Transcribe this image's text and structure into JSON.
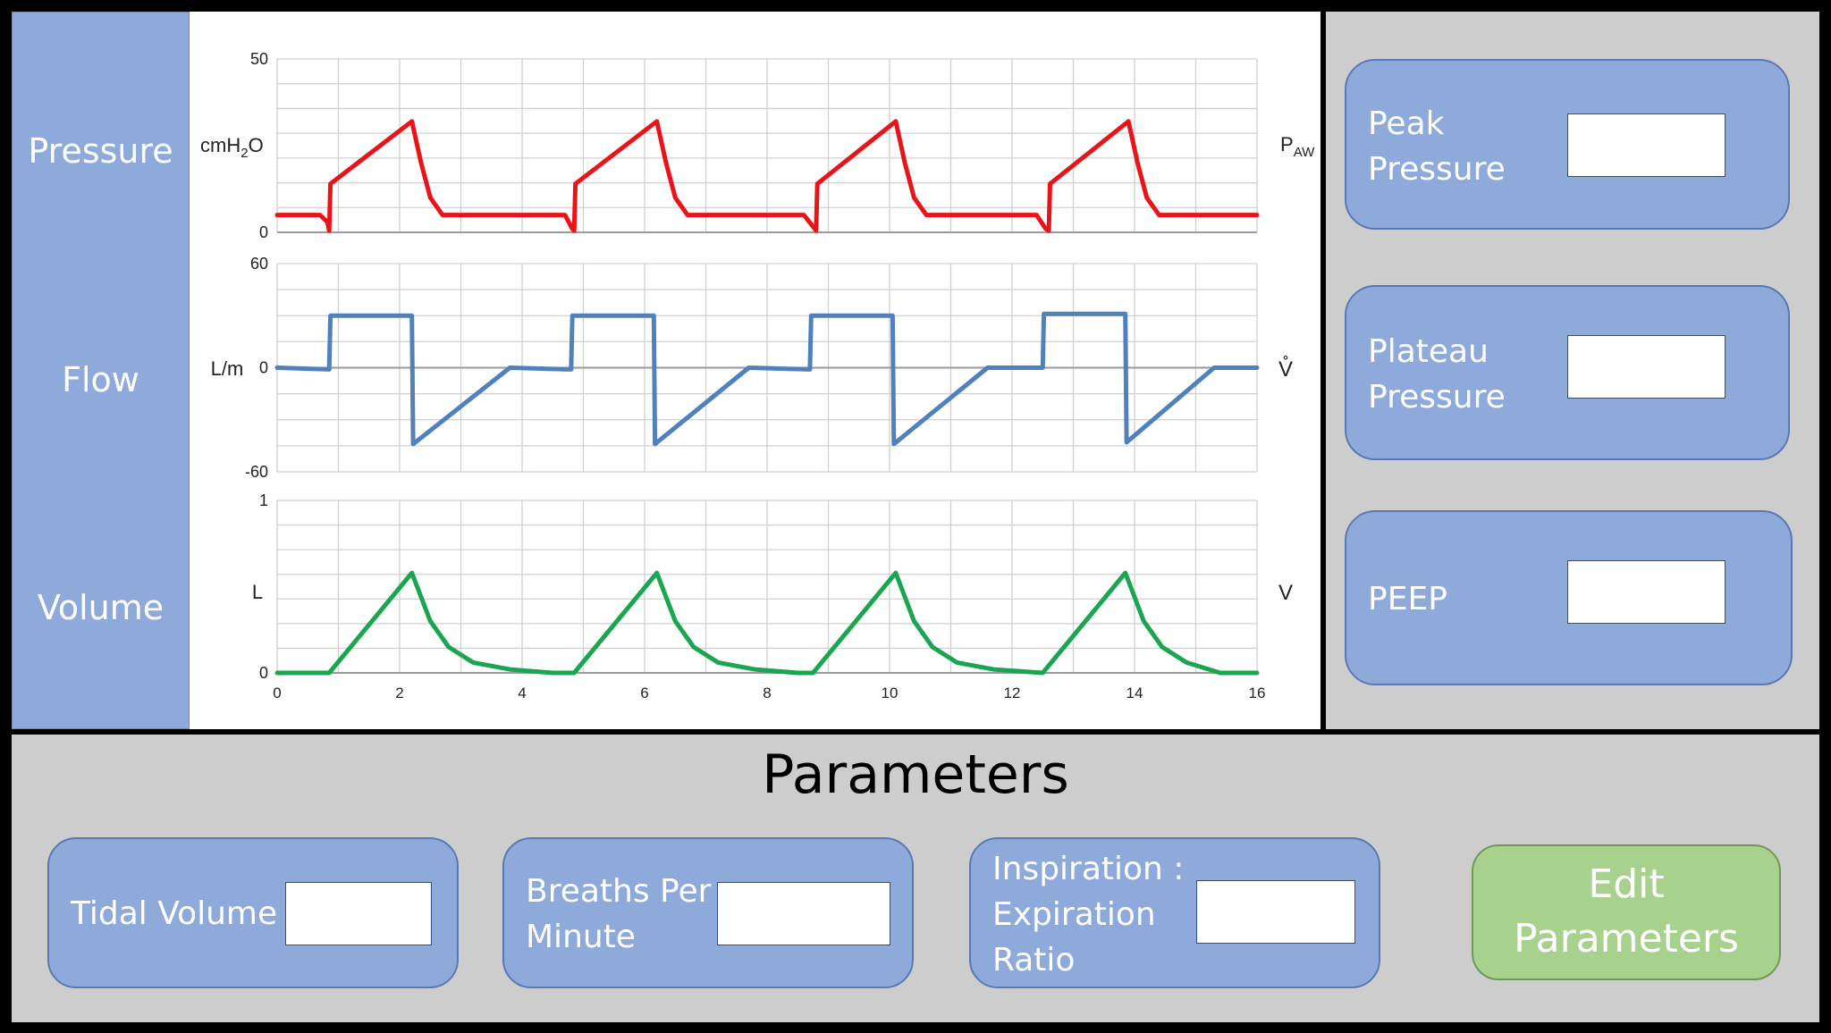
{
  "side_labels": {
    "pressure": "Pressure",
    "flow": "Flow",
    "volume": "Volume"
  },
  "colors": {
    "panel_blue": "#8eaadb",
    "pressure_trace": "#e8141a",
    "flow_trace": "#4f81bd",
    "volume_trace": "#1aa650",
    "edit_button": "#a9d18e",
    "panel_gray": "#cdcdcd"
  },
  "chart_data": [
    {
      "type": "line",
      "ylabel": "cmH2O",
      "right_label": "PAW",
      "ylim": [
        0,
        50
      ],
      "yticks": [
        "0",
        "50"
      ],
      "xlim": [
        0,
        16
      ],
      "grid": true,
      "series": [
        {
          "color": "#e8141a",
          "x": [
            0,
            0.7,
            0.82,
            0.85,
            0.87,
            2.2,
            2.35,
            2.5,
            2.7,
            4.7,
            4.82,
            4.85,
            4.87,
            6.2,
            6.35,
            6.5,
            6.7,
            8.6,
            8.78,
            8.8,
            8.82,
            10.1,
            10.25,
            10.4,
            10.6,
            12.4,
            12.55,
            12.6,
            12.62,
            13.9,
            14.05,
            14.2,
            14.4,
            16
          ],
          "y": [
            5,
            5,
            3,
            0.5,
            14,
            32,
            20,
            10,
            5,
            5,
            1,
            0.5,
            14,
            32,
            20,
            10,
            5,
            5,
            1,
            0.5,
            14,
            32,
            20,
            10,
            5,
            5,
            1,
            0.5,
            14,
            32,
            20,
            10,
            5,
            5
          ]
        }
      ]
    },
    {
      "type": "line",
      "ylabel": "L/m",
      "right_label": "V̊",
      "ylim": [
        -60,
        60
      ],
      "yticks": [
        "-60",
        "0",
        "60"
      ],
      "xlim": [
        0,
        16
      ],
      "grid": true,
      "series": [
        {
          "color": "#4f81bd",
          "x": [
            0,
            0.85,
            0.87,
            2.2,
            2.22,
            3.8,
            4.8,
            4.82,
            6.15,
            6.17,
            7.7,
            8.7,
            8.72,
            10.05,
            10.07,
            11.6,
            12.5,
            12.52,
            13.85,
            13.87,
            15.3,
            16
          ],
          "y": [
            0,
            -1,
            30,
            30,
            -44,
            0,
            -1,
            30,
            30,
            -44,
            0,
            -1,
            30,
            30,
            -44,
            0,
            0,
            31,
            31,
            -43,
            0,
            0
          ]
        }
      ]
    },
    {
      "type": "line",
      "ylabel": "L",
      "right_label": "V",
      "ylim": [
        0,
        1
      ],
      "yticks": [
        "0",
        "1"
      ],
      "xlim": [
        0,
        16
      ],
      "xticks": [
        "0",
        "2",
        "4",
        "6",
        "8",
        "10",
        "12",
        "14",
        "16"
      ],
      "grid": true,
      "series": [
        {
          "color": "#1aa650",
          "x": [
            0,
            0.85,
            2.2,
            2.5,
            2.8,
            3.2,
            3.8,
            4.5,
            4.85,
            6.2,
            6.5,
            6.8,
            7.2,
            7.8,
            8.5,
            8.75,
            10.1,
            10.4,
            10.7,
            11.1,
            11.7,
            12.5,
            13.85,
            14.15,
            14.45,
            14.85,
            15.4,
            16
          ],
          "y": [
            0,
            0,
            0.58,
            0.3,
            0.15,
            0.06,
            0.02,
            0,
            0,
            0.58,
            0.3,
            0.15,
            0.06,
            0.02,
            0,
            0,
            0.58,
            0.3,
            0.15,
            0.06,
            0.02,
            0,
            0.58,
            0.3,
            0.15,
            0.06,
            0,
            0
          ]
        }
      ]
    }
  ],
  "readouts": [
    {
      "label_line1": "Peak",
      "label_line2": "Pressure",
      "value": ""
    },
    {
      "label_line1": "Plateau",
      "label_line2": "Pressure",
      "value": ""
    },
    {
      "label_line1": "PEEP",
      "label_line2": "",
      "value": ""
    }
  ],
  "parameters": {
    "title": "Parameters",
    "tidal_volume": {
      "label": "Tidal Volume",
      "value": ""
    },
    "breaths_per_minute": {
      "label_line1": "Breaths Per",
      "label_line2": "Minute",
      "value": ""
    },
    "ie_ratio": {
      "label_line1": "Inspiration :",
      "label_line2": "Expiration",
      "label_line3": "Ratio",
      "value": ""
    },
    "edit_button": {
      "label_line1": "Edit",
      "label_line2": "Parameters"
    }
  }
}
